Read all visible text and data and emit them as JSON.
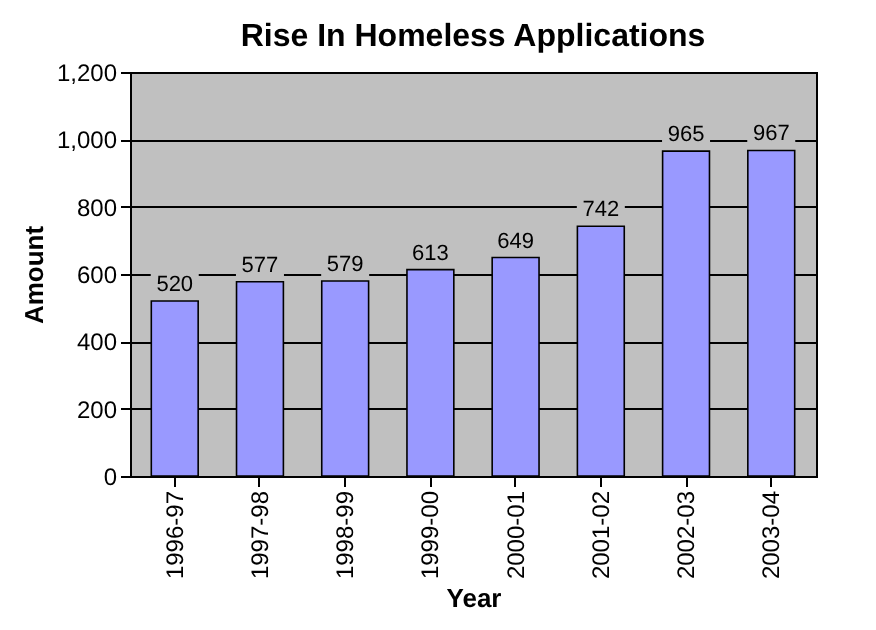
{
  "chart_data": {
    "type": "bar",
    "title": "Rise In Homeless Applications",
    "xlabel": "Year",
    "ylabel": "Amount",
    "categories": [
      "1996-97",
      "1997-98",
      "1998-99",
      "1999-00",
      "2000-01",
      "2001-02",
      "2002-03",
      "2003-04"
    ],
    "values": [
      520,
      577,
      579,
      613,
      649,
      742,
      965,
      967
    ],
    "color": "#9999ff",
    "ylim": [
      0,
      1200
    ],
    "yticks": [
      0,
      200,
      400,
      600,
      800,
      {
        "value": 1000,
        "label": "1,000"
      },
      {
        "value": 1200,
        "label": "1,200"
      }
    ],
    "grid": "y",
    "data_labels": true
  }
}
